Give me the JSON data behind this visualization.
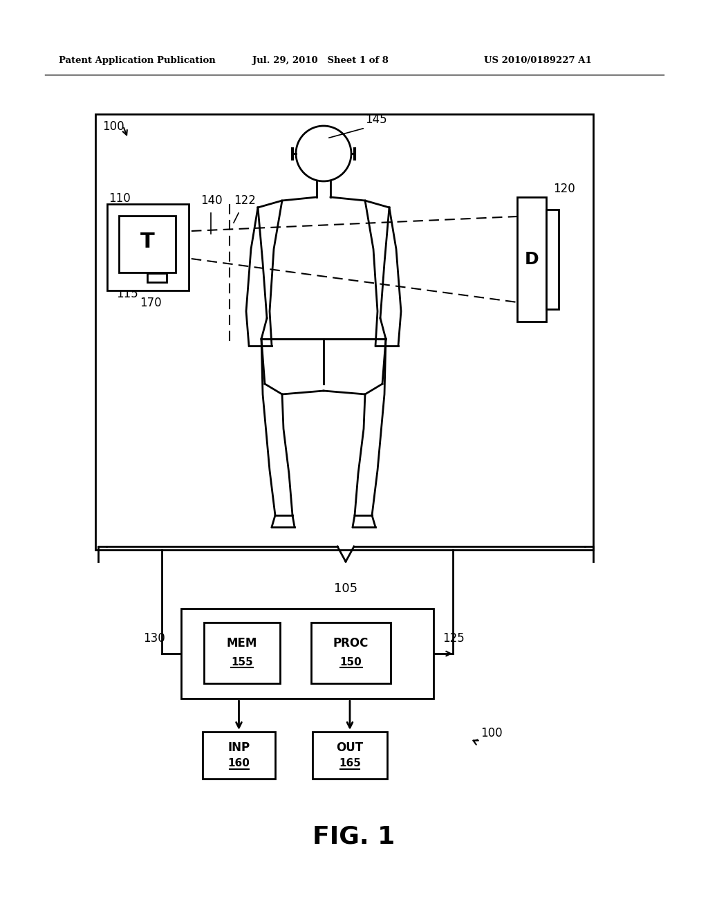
{
  "background_color": "#ffffff",
  "header_left": "Patent Application Publication",
  "header_middle": "Jul. 29, 2010   Sheet 1 of 8",
  "header_right": "US 2010/0189227 A1",
  "fig_label": "FIG. 1",
  "line_color": "#000000",
  "lw_main": 2.0,
  "lw_thin": 1.5,
  "lw_label": 1.2
}
